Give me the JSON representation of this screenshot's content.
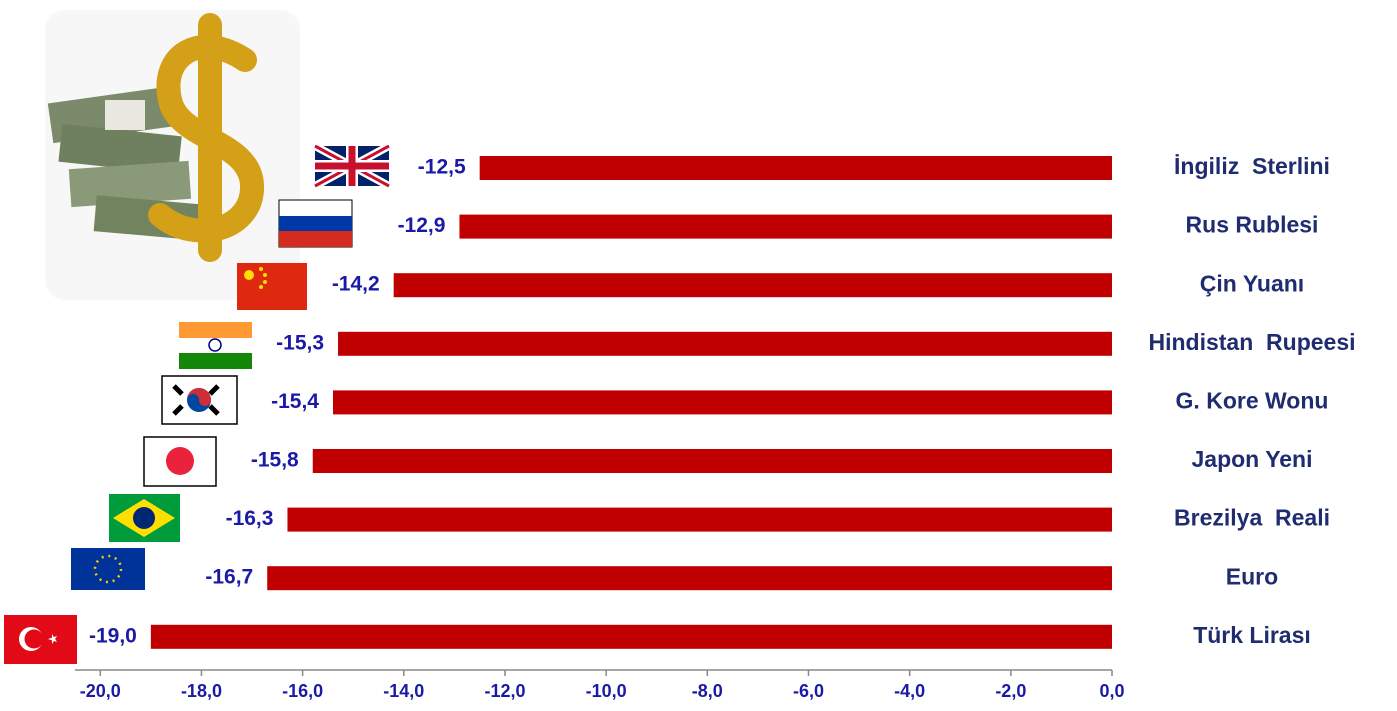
{
  "chart_data": {
    "type": "bar",
    "orientation": "horizontal",
    "categories": [
      "İngiliz  Sterlini",
      "Rus Rublesi",
      "Çin Yuanı",
      "Hindistan  Rupeesi",
      "G. Kore Wonu",
      "Japon Yeni",
      "Brezilya  Reali",
      "Euro",
      "Türk Lirası"
    ],
    "values": [
      -12.5,
      -12.9,
      -14.2,
      -15.3,
      -15.4,
      -15.8,
      -16.3,
      -16.7,
      -19.0
    ],
    "value_labels": [
      "-12,5",
      "-12,9",
      "-14,2",
      "-15,3",
      "-15,4",
      "-15,8",
      "-16,3",
      "-16,7",
      "-19,0"
    ],
    "color": "#c00000",
    "xlim": [
      -20.5,
      0
    ],
    "xticks": [
      {
        "value": -20,
        "label": "-20,0"
      },
      {
        "value": -18,
        "label": "-18,0"
      },
      {
        "value": -16,
        "label": "-16,0"
      },
      {
        "value": -14,
        "label": "-14,0"
      },
      {
        "value": -12,
        "label": "-12,0"
      },
      {
        "value": -10,
        "label": "-10,0"
      },
      {
        "value": -8,
        "label": "-8,0"
      },
      {
        "value": -6,
        "label": "-6,0"
      },
      {
        "value": -4,
        "label": "-4,0"
      },
      {
        "value": -2,
        "label": "-2,0"
      },
      {
        "value": 0,
        "label": "0,0"
      }
    ]
  }
}
